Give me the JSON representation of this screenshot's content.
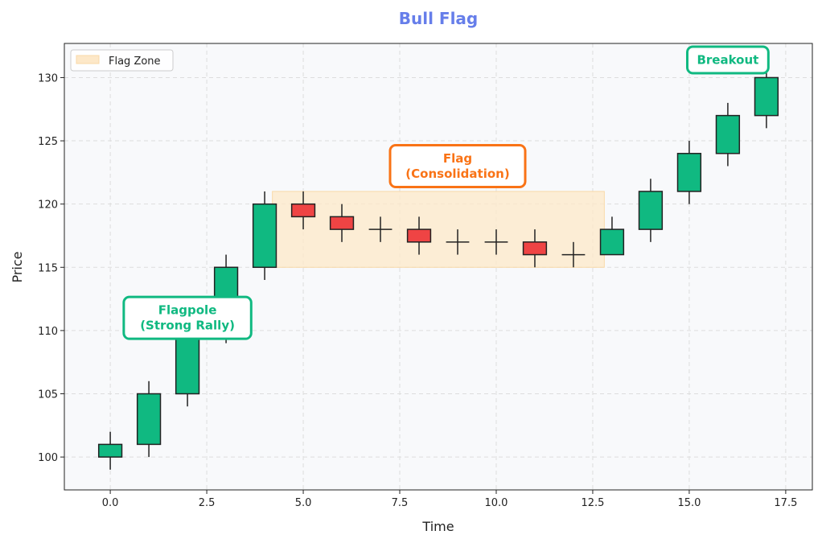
{
  "chart_data": {
    "type": "candlestick",
    "title": "Bull Flag",
    "xlabel": "Time",
    "ylabel": "Price",
    "xlim": [
      -1.19,
      18.19
    ],
    "ylim": [
      97.4,
      132.7
    ],
    "x_ticks": [
      0.0,
      2.5,
      5.0,
      7.5,
      10.0,
      12.5,
      15.0,
      17.5
    ],
    "x_tick_labels": [
      "0.0",
      "2.5",
      "5.0",
      "7.5",
      "10.0",
      "12.5",
      "15.0",
      "17.5"
    ],
    "y_ticks": [
      100,
      105,
      110,
      115,
      120,
      125,
      130
    ],
    "y_tick_labels": [
      "100",
      "105",
      "110",
      "115",
      "120",
      "125",
      "130"
    ],
    "grid": true,
    "legend": {
      "placement": "top-left",
      "entries": [
        "Flag Zone"
      ]
    },
    "colors": {
      "up": "#10b981",
      "down": "#ef4444",
      "title": "#667eea",
      "flag": "#f97316",
      "zone": "#fde8c8",
      "background": "#f8f9fb"
    },
    "candles": [
      {
        "t": 0,
        "open": 100,
        "high": 102,
        "low": 99,
        "close": 101
      },
      {
        "t": 1,
        "open": 101,
        "high": 106,
        "low": 100,
        "close": 105
      },
      {
        "t": 2,
        "open": 105,
        "high": 111,
        "low": 104,
        "close": 110
      },
      {
        "t": 3,
        "open": 110,
        "high": 116,
        "low": 109,
        "close": 115
      },
      {
        "t": 4,
        "open": 115,
        "high": 121,
        "low": 114,
        "close": 120
      },
      {
        "t": 5,
        "open": 120,
        "high": 121,
        "low": 118,
        "close": 119
      },
      {
        "t": 6,
        "open": 119,
        "high": 120,
        "low": 117,
        "close": 118
      },
      {
        "t": 7,
        "open": 118,
        "high": 119,
        "low": 117,
        "close": 118
      },
      {
        "t": 8,
        "open": 118,
        "high": 119,
        "low": 116,
        "close": 117
      },
      {
        "t": 9,
        "open": 117,
        "high": 118,
        "low": 116,
        "close": 117
      },
      {
        "t": 10,
        "open": 117,
        "high": 118,
        "low": 116,
        "close": 117
      },
      {
        "t": 11,
        "open": 117,
        "high": 118,
        "low": 115,
        "close": 116
      },
      {
        "t": 12,
        "open": 116,
        "high": 117,
        "low": 115,
        "close": 116
      },
      {
        "t": 13,
        "open": 116,
        "high": 119,
        "low": 116,
        "close": 118
      },
      {
        "t": 14,
        "open": 118,
        "high": 122,
        "low": 117,
        "close": 121
      },
      {
        "t": 15,
        "open": 121,
        "high": 125,
        "low": 120,
        "close": 124
      },
      {
        "t": 16,
        "open": 124,
        "high": 128,
        "low": 123,
        "close": 127
      },
      {
        "t": 17,
        "open": 127,
        "high": 131,
        "low": 126,
        "close": 130
      }
    ],
    "flag_zone": {
      "x": [
        4.2,
        12.8
      ],
      "y": [
        115,
        121
      ],
      "label": "Flag Zone"
    },
    "annotations": [
      {
        "lines": [
          "Flagpole",
          "(Strong Rally)"
        ],
        "x": 2.0,
        "y": 111,
        "color": "#10b981"
      },
      {
        "lines": [
          "Flag",
          "(Consolidation)"
        ],
        "x": 9.0,
        "y": 123,
        "color": "#f97316"
      },
      {
        "lines": [
          "Breakout"
        ],
        "x": 16.0,
        "y": 131.4,
        "color": "#10b981"
      }
    ]
  }
}
